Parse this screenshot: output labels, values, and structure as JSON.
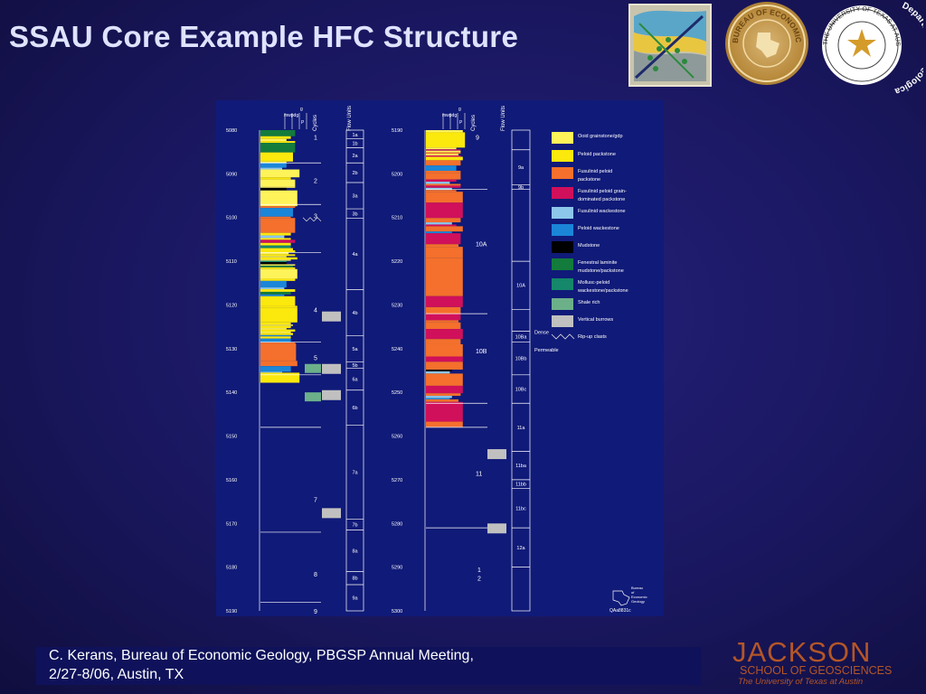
{
  "slide": {
    "title": "SSAU Core Example HFC Structure",
    "caption_line1": "C. Kerans, Bureau of Economic Geology, PBGSP Annual Meeting,",
    "caption_line2": "2/27-8/06, Austin, TX"
  },
  "logos": {
    "beg_seal_text": "BUREAU OF ECONOMIC GEOLOGY",
    "ut_seal_text": "THE UNIVERSITY OF TEXAS AT AUSTIN",
    "ut_dept_text": "Department of Geological Sciences",
    "jackson_word": "JACKSON",
    "jackson_school": "SCHOOL OF GEOSCIENCES",
    "jackson_univ": "The University of Texas at Austin"
  },
  "figure": {
    "colors": {
      "ooid": "#fff35a",
      "peloid_packstone": "#fbe80c",
      "fus_peloid_pack": "#f4702c",
      "fus_peloid_grain": "#d0105a",
      "fus_wacke": "#8cc6ea",
      "peloid_wacke": "#1b86d8",
      "mudstone": "#000000",
      "fenestral": "#137b3c",
      "mollusc": "#15876a",
      "shale": "#6cb08a",
      "burrow": "#c0c0c0"
    },
    "legend": [
      {
        "lines": [
          "Ooid grainstone/gdp"
        ],
        "color": "ooid"
      },
      {
        "lines": [
          "Peloid packstone"
        ],
        "color": "peloid_packstone"
      },
      {
        "lines": [
          "Fusulinid peloid",
          "packstone"
        ],
        "color": "fus_peloid_pack"
      },
      {
        "lines": [
          "Fusulinid peloid grain-",
          "dominated packstone"
        ],
        "color": "fus_peloid_grain"
      },
      {
        "lines": [
          "Fusulinid wackestone"
        ],
        "color": "fus_wacke"
      },
      {
        "lines": [
          "Peloid wackestone"
        ],
        "color": "peloid_wacke"
      },
      {
        "lines": [
          "Mudstone"
        ],
        "color": "mudstone"
      },
      {
        "lines": [
          "Fenestral laminite",
          "mudstone/packstone"
        ],
        "color": "fenestral"
      },
      {
        "lines": [
          "Mollusc-peloid",
          "wackestone/packstone"
        ],
        "color": "mollusc"
      },
      {
        "lines": [
          "Shale rich"
        ],
        "color": "shale"
      },
      {
        "lines": [
          "Vertical burrows"
        ],
        "color": "burrow"
      },
      {
        "lines": [
          "Rip-up clasts"
        ],
        "color": ""
      }
    ],
    "header": {
      "texture_top": "g",
      "texture_mid": "mwpdg",
      "texture_bot": "P",
      "cycles": "Cycles",
      "flow_units": "Flow Units"
    },
    "left_column": {
      "depths": [
        "5080",
        "5090",
        "5100",
        "5110",
        "5120",
        "5130",
        "5140",
        "5150",
        "5160",
        "5170",
        "5180",
        "5190"
      ],
      "cycles": [
        "1",
        "2",
        "3",
        "4",
        "5",
        "6",
        "7",
        "8",
        "9"
      ],
      "flow_units": [
        "1a",
        "1b",
        "2a",
        "2b",
        "3a",
        "3b",
        "4a",
        "4b",
        "5a",
        "5b",
        "6a",
        "6b",
        "7a",
        "7b",
        "8a",
        "8b",
        "9a"
      ]
    },
    "right_column": {
      "depths": [
        "5190",
        "5200",
        "5210",
        "5220",
        "5230",
        "5240",
        "5250",
        "5260",
        "5270",
        "5280",
        "5290",
        "5300"
      ],
      "cycles": [
        "9",
        "10A",
        "10B",
        "11",
        "1",
        "2"
      ],
      "flow_units": [
        "9a",
        "9b",
        "10A",
        "10Ba",
        "10Bb",
        "10Bc",
        "11a",
        "11ba",
        "11bb",
        "11bc",
        "12a"
      ],
      "annotations": [
        "Dense",
        "Permeable"
      ]
    },
    "credit": [
      "Bureau",
      "of",
      "Economic",
      "Geology"
    ],
    "figure_id": "QAa8831c"
  }
}
